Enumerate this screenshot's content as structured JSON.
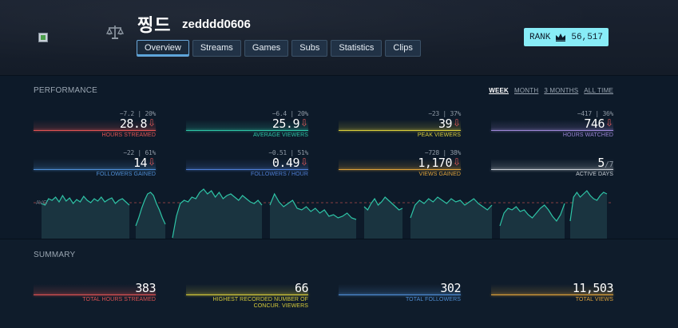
{
  "header": {
    "name_korean": "찡드",
    "name_id": "zedddd0606",
    "avatar_icon": "broken-image-icon",
    "scale_icon": "balance-scale-icon"
  },
  "tabs": [
    {
      "label": "Overview",
      "active": true
    },
    {
      "label": "Streams",
      "active": false
    },
    {
      "label": "Games",
      "active": false
    },
    {
      "label": "Subs",
      "active": false
    },
    {
      "label": "Statistics",
      "active": false
    },
    {
      "label": "Clips",
      "active": false
    }
  ],
  "rank": {
    "label": "RANK",
    "icon": "crown-icon",
    "value": "56,517",
    "color": "#88ecf7"
  },
  "performance": {
    "title": "PERFORMANCE",
    "periods": [
      {
        "label": "WEEK",
        "active": true
      },
      {
        "label": "MONTH",
        "active": false
      },
      {
        "label": "3 MONTHS",
        "active": false
      },
      {
        "label": "ALL TIME",
        "active": false
      }
    ],
    "stats": [
      {
        "delta": "−7.2 | 20%",
        "value": "28.8",
        "arrow": "⇩",
        "label": "HOURS STREAMED",
        "color": "#e05353"
      },
      {
        "delta": "−6.4 | 20%",
        "value": "25.9",
        "arrow": "⇩",
        "label": "AVERAGE VIEWERS",
        "color": "#2ec4a6"
      },
      {
        "delta": "−23 | 37%",
        "value": "39",
        "arrow": "⇩",
        "label": "PEAK VIEWERS",
        "color": "#d8cc3a"
      },
      {
        "delta": "−417 | 36%",
        "value": "746",
        "arrow": "⇩",
        "label": "HOURS WATCHED",
        "color": "#9b86d6"
      },
      {
        "delta": "−22 | 61%",
        "value": "14",
        "arrow": "⇩",
        "label": "FOLLOWERS GAINED",
        "color": "#4f8fd6"
      },
      {
        "delta": "−0.51 | 51%",
        "value": "0.49",
        "arrow": "⇩",
        "label": "FOLLOWERS / HOUR",
        "color": "#4f7fd6"
      },
      {
        "delta": "−728 | 38%",
        "value": "1,170",
        "arrow": "⇩",
        "label": "VIEWS GAINED",
        "color": "#e0a33a"
      },
      {
        "delta": "",
        "value": "5",
        "of": "/7",
        "arrow": "",
        "label": "ACTIVE DAYS",
        "color": "#c9cfd6"
      }
    ],
    "chart": {
      "avg_label": "AVG",
      "line_color": "#2ec4a6"
    }
  },
  "summary": {
    "title": "SUMMARY",
    "stats": [
      {
        "value": "383",
        "label": "TOTAL HOURS STREAMED",
        "color": "#e05353"
      },
      {
        "value": "66",
        "label": "HIGHEST RECORDED NUMBER OF CONCUR. VIEWERS",
        "color": "#d8cc3a"
      },
      {
        "value": "302",
        "label": "TOTAL FOLLOWERS",
        "color": "#4f8fd6"
      },
      {
        "value": "11,503",
        "label": "TOTAL VIEWS",
        "color": "#e0a33a"
      }
    ]
  }
}
